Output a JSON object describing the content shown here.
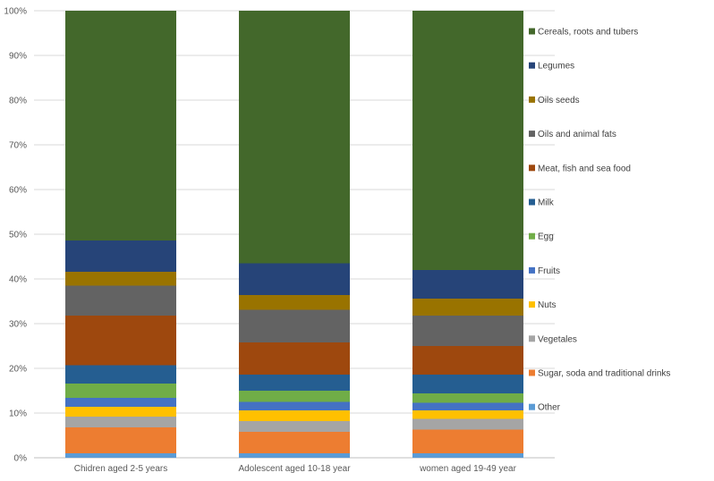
{
  "chart_data": {
    "type": "bar",
    "stacked": true,
    "percent": true,
    "title": "",
    "xlabel": "",
    "ylabel": "",
    "ylim": [
      0,
      100
    ],
    "yticks": [
      "0%",
      "10%",
      "20%",
      "30%",
      "40%",
      "50%",
      "60%",
      "70%",
      "80%",
      "90%",
      "100%"
    ],
    "categories": [
      "Chidren aged 2-5 years",
      "Adolescent aged  10-18  year",
      "women aged  19-49 year"
    ],
    "legend_position": "right",
    "series": [
      {
        "name": "Other",
        "color": "#5b9bd5",
        "values": [
          1.0,
          1.0,
          1.0
        ]
      },
      {
        "name": "Sugar, soda and traditional drinks",
        "color": "#ed7d31",
        "values": [
          5.8,
          4.8,
          5.3
        ]
      },
      {
        "name": "Vegetales",
        "color": "#a5a5a5",
        "values": [
          2.4,
          2.4,
          2.4
        ]
      },
      {
        "name": "Nuts",
        "color": "#ffc000",
        "values": [
          2.2,
          2.4,
          1.9
        ]
      },
      {
        "name": "Fruits",
        "color": "#4472c4",
        "values": [
          2.0,
          1.9,
          1.7
        ]
      },
      {
        "name": "Egg",
        "color": "#70ad47",
        "values": [
          3.2,
          2.5,
          2.1
        ]
      },
      {
        "name": "Milk",
        "color": "#255e91",
        "values": [
          4.1,
          3.6,
          4.2
        ]
      },
      {
        "name": "Meat, fish and sea food",
        "color": "#9e480e",
        "values": [
          11.1,
          7.2,
          6.4
        ]
      },
      {
        "name": "Oils and animal fats",
        "color": "#636363",
        "values": [
          6.7,
          7.3,
          6.8
        ]
      },
      {
        "name": "Oils seeds",
        "color": "#997300",
        "values": [
          3.1,
          3.3,
          3.8
        ]
      },
      {
        "name": "Legumes",
        "color": "#264478",
        "values": [
          7.0,
          7.1,
          6.4
        ]
      },
      {
        "name": "Cereals, roots and tubers",
        "color": "#43682b",
        "values": [
          51.4,
          56.5,
          58.0
        ]
      }
    ]
  }
}
